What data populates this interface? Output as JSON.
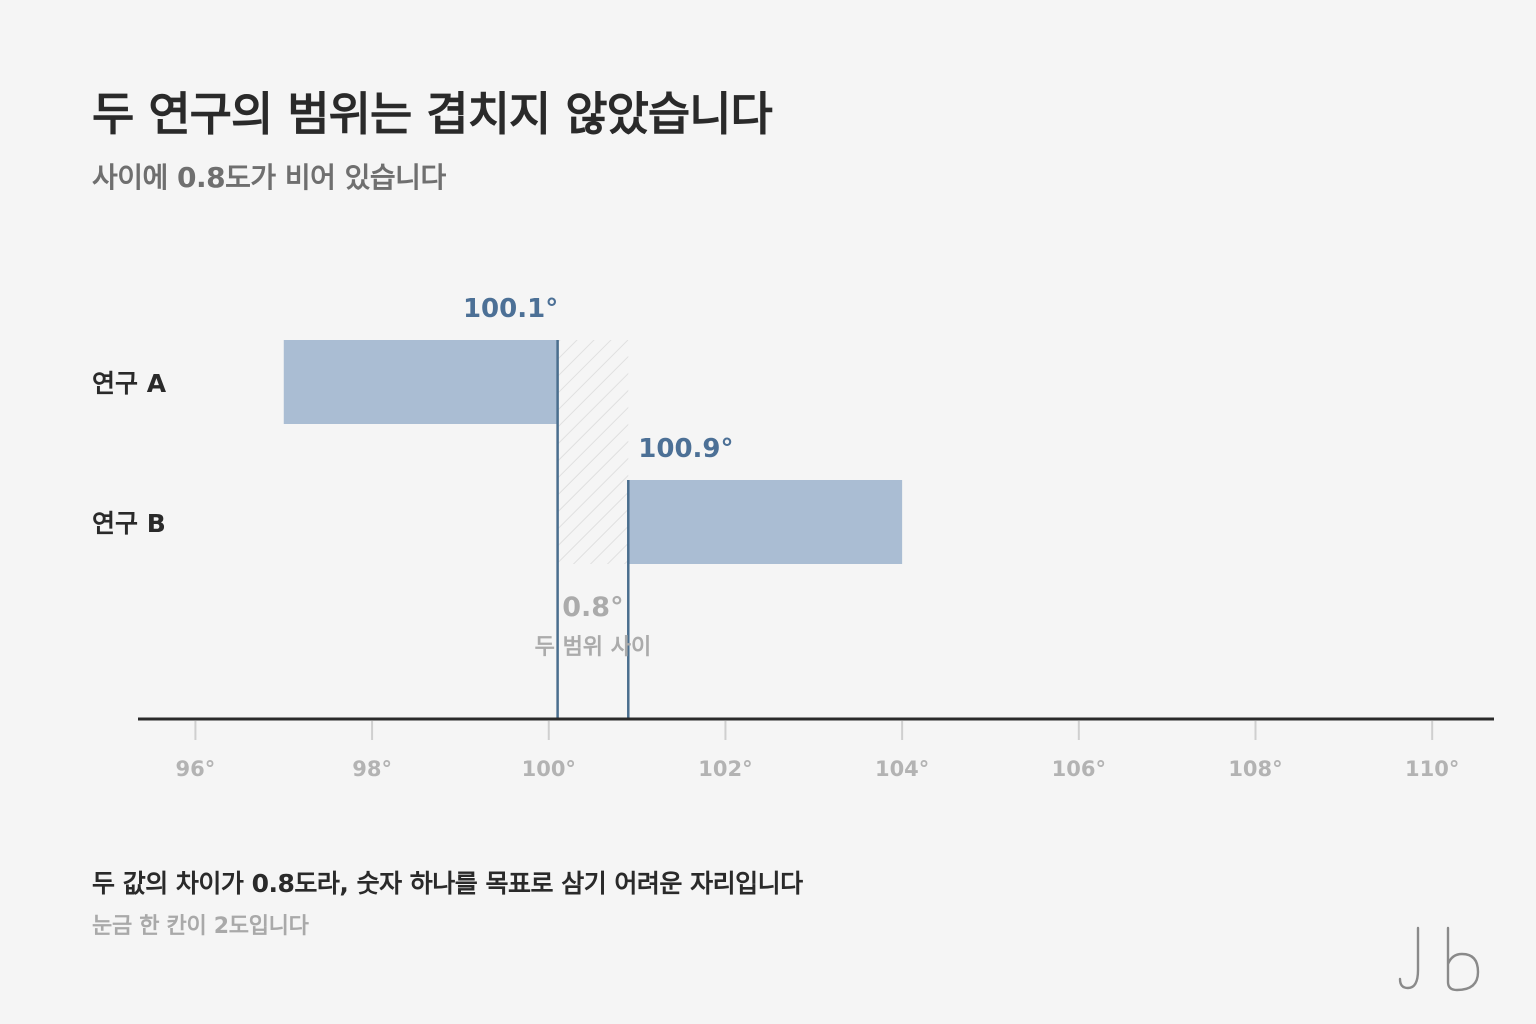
{
  "title": "두 연구의 범위는 겹치지 않았습니다",
  "subtitle": "사이에 0.8도가 비어 있습니다",
  "footnote": "두 값의 차이가 0.8도라, 숫자 하나를 목표로 삼기 어려운 자리입니다",
  "footnote_sub": "눈금 한 칸이 2도입니다",
  "colors": {
    "bar_fill": "#aabdd3",
    "edge_line": "#4a6e8e",
    "edge_label": "#4c7096",
    "gap_label": "#ababab",
    "axis": "#2a2a2a",
    "tick_label": "#b3b3b3",
    "category_label": "#2a2a2a",
    "logo": "#8a8a8a"
  },
  "chart_data": {
    "type": "range-bar",
    "xlim": [
      95.35,
      110.7
    ],
    "x_ticks": [
      96,
      98,
      100,
      102,
      104,
      106,
      108,
      110
    ],
    "x_tick_labels": [
      "96°",
      "98°",
      "100°",
      "102°",
      "104°",
      "106°",
      "108°",
      "110°"
    ],
    "categories": [
      "연구 A",
      "연구 B"
    ],
    "ranges": [
      {
        "category": "연구 A",
        "start": 97.0,
        "end": 100.1,
        "edge_label": "100.1°"
      },
      {
        "category": "연구 B",
        "start": 100.9,
        "end": 104.0,
        "edge_label": "100.9°"
      }
    ],
    "gap": {
      "from": 100.1,
      "to": 100.9,
      "label": "0.8°",
      "sublabel": "두 범위 사이"
    },
    "grid": false
  }
}
